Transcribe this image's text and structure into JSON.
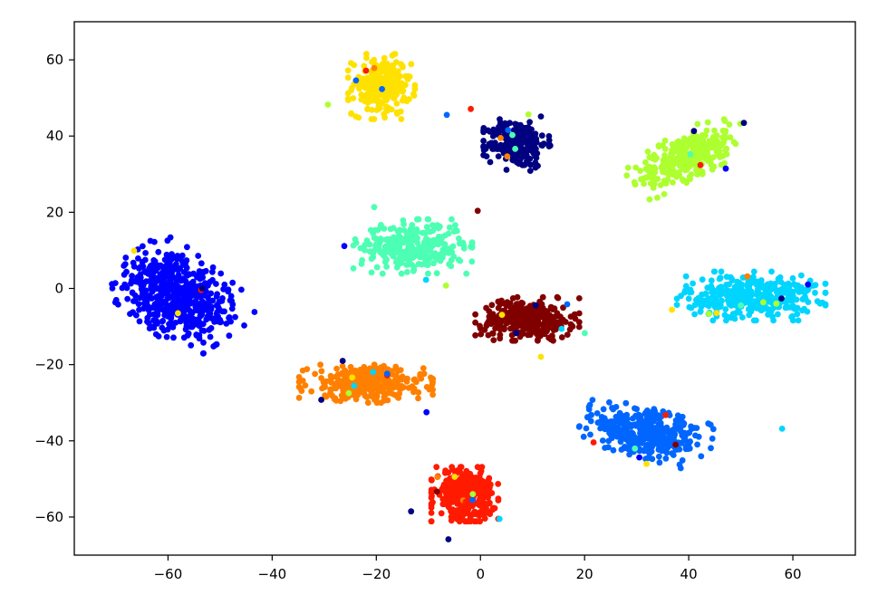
{
  "chart_data": {
    "type": "scatter",
    "title": "",
    "xlabel": "",
    "ylabel": "",
    "xlim": [
      -78,
      72
    ],
    "ylim": [
      -70,
      70
    ],
    "x_ticks": [
      -60,
      -40,
      -20,
      0,
      20,
      40,
      60
    ],
    "y_ticks": [
      -60,
      -40,
      -20,
      0,
      20,
      40,
      60
    ],
    "x_tick_labels": [
      "−60",
      "−40",
      "−20",
      "0",
      "20",
      "40",
      "60"
    ],
    "y_tick_labels": [
      "−60",
      "−40",
      "−20",
      "0",
      "20",
      "40",
      "60"
    ],
    "grid": false,
    "legend": "none",
    "series": [
      {
        "color": "#0000ff",
        "n": 560,
        "center": [
          -58,
          -2
        ],
        "spread": [
          7,
          10
        ],
        "rotation_deg": 43
      },
      {
        "color": "#ffe100",
        "n": 240,
        "center": [
          -19,
          53
        ],
        "spread": [
          4.5,
          6
        ],
        "rotation_deg": 0
      },
      {
        "color": "#000080",
        "n": 220,
        "center": [
          7,
          38
        ],
        "spread": [
          4.5,
          5
        ],
        "rotation_deg": 0
      },
      {
        "color": "#adff2f",
        "n": 300,
        "center": [
          40,
          35
        ],
        "spread": [
          9,
          4
        ],
        "rotation_deg": 35
      },
      {
        "color": "#4dffb3",
        "n": 330,
        "center": [
          -13,
          11
        ],
        "spread": [
          8,
          5
        ],
        "rotation_deg": 0
      },
      {
        "color": "#00d5ff",
        "n": 380,
        "center": [
          52,
          -2
        ],
        "spread": [
          10,
          4.5
        ],
        "rotation_deg": 0
      },
      {
        "color": "#800000",
        "n": 320,
        "center": [
          9,
          -8
        ],
        "spread": [
          7,
          4
        ],
        "rotation_deg": 0
      },
      {
        "color": "#ff8000",
        "n": 360,
        "center": [
          -22,
          -25
        ],
        "spread": [
          9,
          3.5
        ],
        "rotation_deg": 0
      },
      {
        "color": "#0066ff",
        "n": 380,
        "center": [
          32,
          -38
        ],
        "spread": [
          9,
          4.5
        ],
        "rotation_deg": -20
      },
      {
        "color": "#ff1a00",
        "n": 340,
        "center": [
          -3,
          -54
        ],
        "spread": [
          4.5,
          5
        ],
        "rotation_deg": 0
      }
    ]
  }
}
